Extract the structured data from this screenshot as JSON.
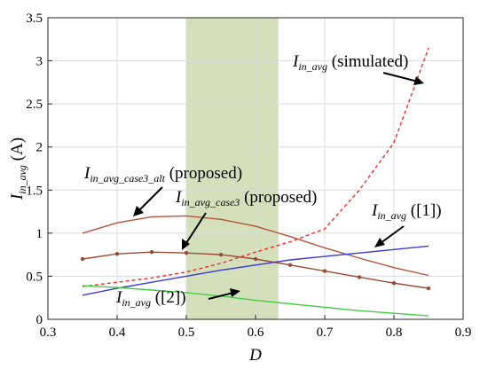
{
  "chart_data": {
    "type": "line",
    "xlabel": "D",
    "ylabel_main": "I",
    "ylabel_sub": "in_avg",
    "ylabel_unit": " (A)",
    "xlim": [
      0.3,
      0.9
    ],
    "ylim": [
      0,
      3.5
    ],
    "x_ticks": [
      "0.3",
      "0.4",
      "0.5",
      "0.6",
      "0.7",
      "0.8",
      "0.9"
    ],
    "y_ticks": [
      "0",
      "0.5",
      "1",
      "1.5",
      "2",
      "2.5",
      "3",
      "3.5"
    ],
    "grid": true,
    "highlight_band": {
      "x_from": 0.5,
      "x_to": 0.633,
      "color": "#c6d5a5"
    },
    "series": [
      {
        "id": "simulated",
        "label_main": "I",
        "label_sub": "in_avg",
        "label_rest": " (simulated)",
        "color": "#e8312b",
        "dash": true,
        "markers": false,
        "x": [
          0.35,
          0.4,
          0.45,
          0.5,
          0.55,
          0.6,
          0.65,
          0.7,
          0.75,
          0.8,
          0.85
        ],
        "y": [
          0.38,
          0.43,
          0.48,
          0.55,
          0.65,
          0.78,
          0.9,
          1.05,
          1.5,
          2.05,
          3.15
        ]
      },
      {
        "id": "case3_alt",
        "label_main": "I",
        "label_sub": "in_avg_case3_alt",
        "label_rest": " (proposed)",
        "color": "#b5533a",
        "dash": false,
        "markers": false,
        "x": [
          0.35,
          0.4,
          0.45,
          0.5,
          0.55,
          0.6,
          0.65,
          0.7,
          0.75,
          0.8,
          0.85
        ],
        "y": [
          1.0,
          1.12,
          1.19,
          1.2,
          1.16,
          1.08,
          0.96,
          0.83,
          0.71,
          0.6,
          0.51
        ]
      },
      {
        "id": "case3",
        "label_main": "I",
        "label_sub": "in_avg_case3",
        "label_rest": " (proposed)",
        "color": "#9a4a34",
        "dash": false,
        "markers": true,
        "x": [
          0.35,
          0.4,
          0.45,
          0.5,
          0.55,
          0.6,
          0.65,
          0.7,
          0.75,
          0.8,
          0.85
        ],
        "y": [
          0.7,
          0.76,
          0.78,
          0.77,
          0.75,
          0.7,
          0.63,
          0.56,
          0.49,
          0.42,
          0.36
        ]
      },
      {
        "id": "ref1",
        "label_main": "I",
        "label_sub": "in_avg",
        "label_rest": " ([1])",
        "color": "#3a3ad6",
        "dash": false,
        "markers": false,
        "x": [
          0.35,
          0.4,
          0.45,
          0.5,
          0.55,
          0.6,
          0.65,
          0.7,
          0.75,
          0.8,
          0.85
        ],
        "y": [
          0.28,
          0.36,
          0.43,
          0.5,
          0.57,
          0.63,
          0.69,
          0.73,
          0.77,
          0.81,
          0.85
        ]
      },
      {
        "id": "ref2",
        "label_main": "I",
        "label_sub": "in_avg",
        "label_rest": " ([2])",
        "color": "#44cc44",
        "dash": false,
        "markers": false,
        "x": [
          0.35,
          0.4,
          0.45,
          0.5,
          0.55,
          0.6,
          0.65,
          0.7,
          0.75,
          0.8,
          0.85
        ],
        "y": [
          0.39,
          0.37,
          0.34,
          0.31,
          0.27,
          0.22,
          0.18,
          0.14,
          0.1,
          0.07,
          0.04
        ]
      }
    ]
  }
}
